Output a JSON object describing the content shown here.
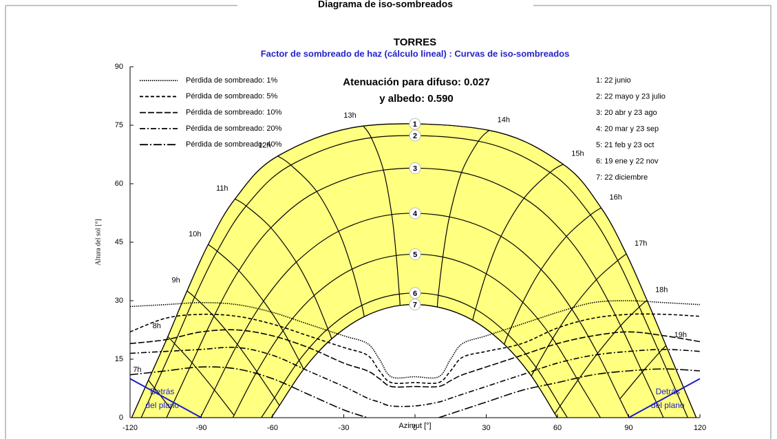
{
  "header": {
    "title": "Diagrama de iso-sombreados"
  },
  "chart_data": {
    "type": "sun-path",
    "title": "TORRES",
    "subtitle": "Factor de sombreado de haz (cálculo lineal) : Curvas de iso-sombreados",
    "annotations": [
      "Atenuación para difuso: 0.027",
      "y albedo: 0.590"
    ],
    "x_label": "Azimut [°]",
    "y_label": "Altura del sol [°]",
    "xlim": [
      -120,
      120
    ],
    "ylim": [
      0,
      90
    ],
    "xticks": [
      -120,
      -90,
      -60,
      -30,
      0,
      30,
      60,
      90,
      120
    ],
    "yticks": [
      0,
      15,
      30,
      45,
      60,
      75,
      90
    ],
    "band_color": "#ffff80",
    "hours": [
      "7h",
      "8h",
      "9h",
      "10h",
      "11h",
      "12h",
      "13h",
      "14h",
      "15h",
      "16h",
      "17h",
      "18h",
      "19h"
    ],
    "sun_paths": [
      {
        "name": "1",
        "legend": "1: 22 junio",
        "azimuth": [
          -112.3,
          -104.1,
          -96.0,
          -87.1,
          -75.8,
          -57.8,
          -21.8,
          31.2,
          62.4,
          78.4,
          89.0,
          97.7,
          105.7
        ],
        "altitude": [
          9.6,
          20.8,
          32.5,
          44.4,
          56.1,
          67.1,
          74.8,
          73.7,
          65.0,
          53.8,
          42.0,
          30.1,
          18.5
        ]
      },
      {
        "name": "2",
        "legend": "2: 22 mayo y 23 julio",
        "azimuth": [
          -109.7,
          -101.3,
          -92.8,
          -83.3,
          -71.1,
          -52.3,
          -18.4,
          26.7,
          56.9,
          73.9,
          85.4,
          94.5,
          102.9
        ],
        "altitude": [
          7.6,
          19.0,
          30.9,
          42.7,
          54.3,
          64.8,
          71.8,
          70.9,
          62.9,
          52.0,
          40.3,
          28.4,
          16.7
        ]
      },
      {
        "name": "3",
        "legend": "3: 20 abr y 23 ago",
        "azimuth": [
          -102.9,
          -93.9,
          -84.7,
          -74.2,
          -60.7,
          -41.4,
          -13.3,
          19.6,
          45.9,
          63.8,
          76.4,
          86.6,
          95.7
        ],
        "altitude": [
          2.3,
          14.1,
          26.0,
          37.7,
          48.7,
          58.0,
          63.5,
          62.9,
          56.3,
          46.5,
          35.4,
          23.6,
          11.7
        ]
      },
      {
        "name": "4",
        "legend": "4: 20 mar y 23 sep",
        "azimuth": [
          null,
          -84.5,
          -74.8,
          -63.8,
          -50.0,
          -32.2,
          -9.8,
          14.5,
          36.2,
          53.1,
          66.1,
          76.9,
          86.3
        ],
        "altitude": [
          null,
          7.1,
          18.8,
          29.9,
          39.9,
          47.8,
          52.1,
          51.5,
          46.5,
          38.0,
          27.8,
          16.5,
          4.8
        ]
      },
      {
        "name": "5",
        "legend": "5: 21 feb y 23 oct",
        "azimuth": [
          null,
          -76.2,
          -66.6,
          -55.6,
          -42.5,
          -26.5,
          -7.9,
          11.7,
          30.0,
          45.4,
          58.0,
          68.6,
          null
        ],
        "altitude": [
          null,
          0.6,
          11.8,
          22.3,
          31.3,
          38.1,
          41.6,
          41.2,
          36.9,
          29.6,
          20.3,
          9.6,
          null
        ]
      },
      {
        "name": "6",
        "legend": "6: 19 ene y 22 nov",
        "azimuth": [
          null,
          null,
          -59.2,
          -48.8,
          -36.7,
          -22.4,
          -6.6,
          9.8,
          25.5,
          39.2,
          51.0,
          61.1,
          null
        ],
        "altitude": [
          null,
          null,
          5.1,
          14.7,
          22.8,
          28.8,
          31.7,
          31.4,
          27.8,
          21.3,
          12.9,
          3.0,
          null
        ]
      },
      {
        "name": "7",
        "legend": "7: 22 diciembre",
        "azimuth": [
          null,
          null,
          -57.1,
          -46.9,
          -35.1,
          -21.4,
          -6.3,
          9.4,
          24.3,
          37.6,
          49.0,
          58.9,
          null
        ],
        "altitude": [
          null,
          null,
          3.1,
          12.4,
          20.2,
          25.9,
          28.8,
          28.4,
          25.0,
          18.8,
          10.7,
          1.0,
          null
        ]
      }
    ],
    "shading_x": [
      -120,
      -105,
      -90,
      -75,
      -60,
      -45,
      -30,
      -20,
      -15,
      -10,
      0,
      10,
      15,
      20,
      30,
      45,
      60,
      75,
      90,
      105,
      120
    ],
    "shading": [
      {
        "name": "Pérdida de sombreado: 1%",
        "style": "dotted",
        "values": [
          28.5,
          29,
          29.5,
          29,
          27,
          24,
          21,
          19,
          15,
          10.5,
          10.5,
          10.5,
          15,
          19,
          21,
          24,
          27,
          29.5,
          30,
          29.5,
          29
        ]
      },
      {
        "name": "Pérdida de sombreado: 5%",
        "style": "dashed",
        "values": [
          22,
          25.5,
          26.5,
          26,
          24,
          21,
          18,
          16,
          12,
          9,
          9,
          9,
          12,
          15.5,
          17,
          19,
          23,
          25.5,
          26.5,
          26.5,
          26
        ]
      },
      {
        "name": "Pérdida de sombreado: 10%",
        "style": "long-dashed",
        "values": [
          19,
          20,
          22,
          22.5,
          21,
          18,
          14,
          12,
          10,
          8,
          8,
          8,
          9.5,
          11,
          13,
          16,
          19,
          21,
          22,
          21,
          19.5
        ]
      },
      {
        "name": "Pérdida de sombreado: 20%",
        "style": "dash-dot",
        "values": [
          16.5,
          17,
          17.5,
          18,
          16,
          12,
          8,
          5,
          4,
          3,
          3,
          4,
          5,
          6,
          8,
          11,
          14,
          16,
          17,
          17.5,
          17
        ]
      },
      {
        "name": "Pérdida de sombreado: 40%",
        "style": "long-dash-dot",
        "values": [
          11,
          12,
          13,
          12.5,
          10,
          6,
          2,
          0,
          null,
          null,
          null,
          0,
          1,
          2,
          4,
          7,
          9,
          11,
          12,
          12.5,
          12
        ]
      }
    ],
    "behind_plane": [
      {
        "label_lines": [
          "Detrás",
          "del plano"
        ],
        "x": [
          -120,
          -90
        ],
        "y": [
          10,
          0
        ]
      },
      {
        "label_lines": [
          "Detrás",
          "del plano"
        ],
        "x": [
          90,
          120
        ],
        "y": [
          0,
          10
        ]
      }
    ],
    "behind_plane_color": "#1a1acc"
  }
}
